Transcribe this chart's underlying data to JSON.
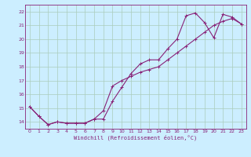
{
  "xlabel": "Windchill (Refroidissement éolien,°C)",
  "background_color": "#cceeff",
  "grid_color": "#aaccbb",
  "line_color": "#882277",
  "xlim": [
    -0.5,
    23.5
  ],
  "ylim": [
    13.5,
    22.5
  ],
  "xticks": [
    0,
    1,
    2,
    3,
    4,
    5,
    6,
    7,
    8,
    9,
    10,
    11,
    12,
    13,
    14,
    15,
    16,
    17,
    18,
    19,
    20,
    21,
    22,
    23
  ],
  "yticks": [
    14,
    15,
    16,
    17,
    18,
    19,
    20,
    21,
    22
  ],
  "line1_x": [
    0,
    1,
    2,
    3,
    4,
    5,
    6,
    7,
    8,
    9,
    10,
    11,
    12,
    13,
    14,
    15,
    16,
    17,
    18,
    19,
    20,
    21,
    22,
    23
  ],
  "line1_y": [
    15.1,
    14.4,
    13.8,
    14.0,
    13.9,
    13.9,
    13.9,
    14.2,
    14.2,
    15.5,
    16.5,
    17.5,
    18.2,
    18.5,
    18.5,
    19.3,
    20.0,
    21.7,
    21.9,
    21.2,
    20.1,
    21.8,
    21.6,
    21.1
  ],
  "line2_x": [
    0,
    1,
    2,
    3,
    4,
    5,
    6,
    7,
    8,
    9,
    10,
    11,
    12,
    13,
    14,
    15,
    16,
    17,
    18,
    19,
    20,
    21,
    22,
    23
  ],
  "line2_y": [
    15.1,
    14.4,
    13.8,
    14.0,
    13.9,
    13.9,
    13.9,
    14.2,
    14.8,
    16.6,
    17.0,
    17.3,
    17.6,
    17.8,
    18.0,
    18.5,
    19.0,
    19.5,
    20.0,
    20.5,
    21.0,
    21.3,
    21.5,
    21.1
  ],
  "tick_fontsize": 4.5,
  "xlabel_fontsize": 5.0,
  "marker_size": 2.5,
  "linewidth": 0.8
}
